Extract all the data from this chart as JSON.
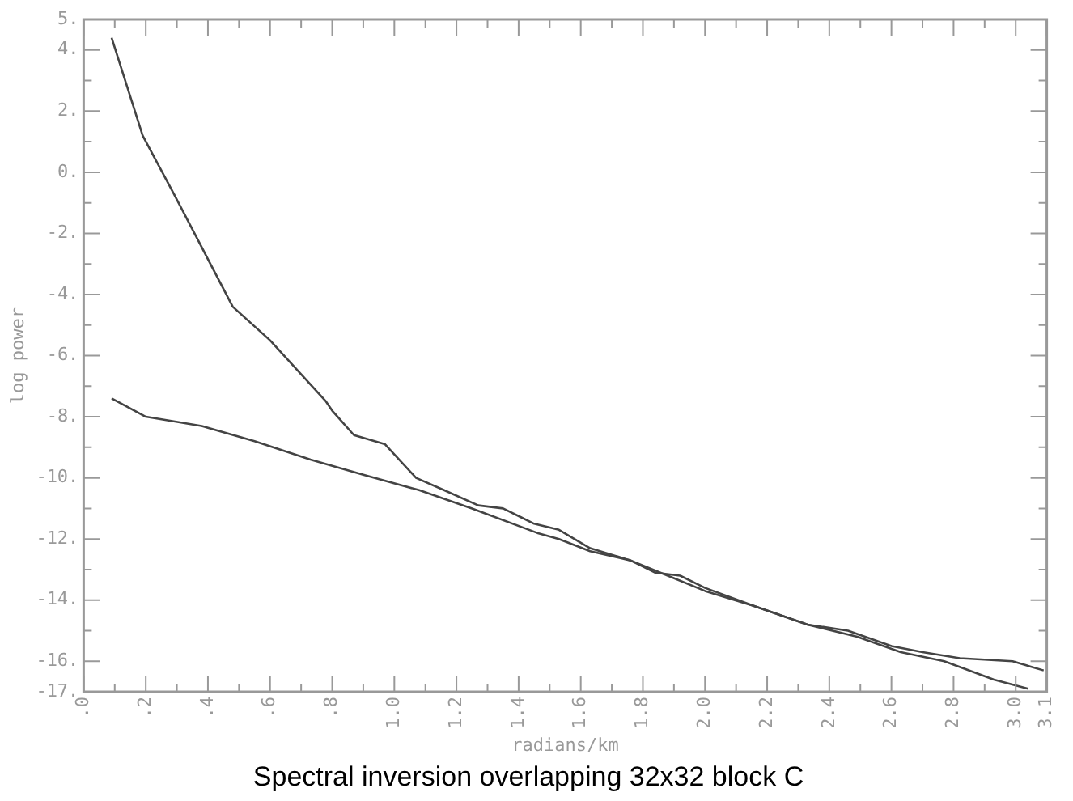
{
  "chart_data": {
    "type": "line",
    "title": "Spectral inversion overlapping 32x32 block C",
    "xlabel": "radians/km",
    "ylabel": "log power",
    "xlim": [
      0,
      3.1
    ],
    "ylim": [
      -17,
      5
    ],
    "xticks": [
      {
        "value": 0,
        "label": ".0"
      },
      {
        "value": 0.1,
        "label": null
      },
      {
        "value": 0.2,
        "label": ".2"
      },
      {
        "value": 0.3,
        "label": null
      },
      {
        "value": 0.4,
        "label": ".4"
      },
      {
        "value": 0.5,
        "label": null
      },
      {
        "value": 0.6,
        "label": ".6"
      },
      {
        "value": 0.7,
        "label": null
      },
      {
        "value": 0.8,
        "label": ".8"
      },
      {
        "value": 0.9,
        "label": null
      },
      {
        "value": 1.0,
        "label": "1.0"
      },
      {
        "value": 1.1,
        "label": null
      },
      {
        "value": 1.2,
        "label": "1.2"
      },
      {
        "value": 1.3,
        "label": null
      },
      {
        "value": 1.4,
        "label": "1.4"
      },
      {
        "value": 1.5,
        "label": null
      },
      {
        "value": 1.6,
        "label": "1.6"
      },
      {
        "value": 1.7,
        "label": null
      },
      {
        "value": 1.8,
        "label": "1.8"
      },
      {
        "value": 1.9,
        "label": null
      },
      {
        "value": 2.0,
        "label": "2.0"
      },
      {
        "value": 2.1,
        "label": null
      },
      {
        "value": 2.2,
        "label": "2.2"
      },
      {
        "value": 2.3,
        "label": null
      },
      {
        "value": 2.4,
        "label": "2.4"
      },
      {
        "value": 2.5,
        "label": null
      },
      {
        "value": 2.6,
        "label": "2.6"
      },
      {
        "value": 2.7,
        "label": null
      },
      {
        "value": 2.8,
        "label": "2.8"
      },
      {
        "value": 2.9,
        "label": null
      },
      {
        "value": 3.0,
        "label": "3.0"
      },
      {
        "value": 3.1,
        "label": "3.1"
      }
    ],
    "yticks": [
      {
        "value": -17,
        "label": "-17."
      },
      {
        "value": -16,
        "label": "-16."
      },
      {
        "value": -15,
        "label": null
      },
      {
        "value": -14,
        "label": "-14."
      },
      {
        "value": -13,
        "label": null
      },
      {
        "value": -12,
        "label": "-12."
      },
      {
        "value": -11,
        "label": null
      },
      {
        "value": -10,
        "label": "-10."
      },
      {
        "value": -9,
        "label": null
      },
      {
        "value": -8,
        "label": "-8."
      },
      {
        "value": -7,
        "label": null
      },
      {
        "value": -6,
        "label": "-6."
      },
      {
        "value": -5,
        "label": null
      },
      {
        "value": -4,
        "label": "-4."
      },
      {
        "value": -3,
        "label": null
      },
      {
        "value": -2,
        "label": "-2."
      },
      {
        "value": -1,
        "label": null
      },
      {
        "value": 0,
        "label": "0."
      },
      {
        "value": 1,
        "label": null
      },
      {
        "value": 2,
        "label": "2."
      },
      {
        "value": 3,
        "label": null
      },
      {
        "value": 4,
        "label": "4."
      },
      {
        "value": 5,
        "label": "5."
      }
    ],
    "grid": false,
    "legend": false,
    "marker": "none",
    "line_style": "solid",
    "series": [
      {
        "color": "#444444",
        "x": [
          0.09,
          0.19,
          0.29,
          0.48,
          0.6,
          0.78,
          0.8,
          0.87,
          0.97,
          1.07,
          1.16,
          1.27,
          1.35,
          1.41,
          1.45,
          1.53,
          1.63,
          1.76,
          1.84,
          1.92,
          2.0,
          2.16,
          2.33,
          2.46,
          2.6,
          2.7,
          2.82,
          2.99,
          3.09
        ],
        "values": [
          4.4,
          1.2,
          -0.7,
          -4.4,
          -5.5,
          -7.5,
          -7.8,
          -8.6,
          -8.9,
          -10.0,
          -10.4,
          -10.9,
          -11.0,
          -11.3,
          -11.5,
          -11.7,
          -12.3,
          -12.7,
          -13.1,
          -13.2,
          -13.6,
          -14.2,
          -14.8,
          -15.0,
          -15.5,
          -15.7,
          -15.9,
          -16.0,
          -16.3
        ]
      },
      {
        "color": "#444444",
        "x": [
          0.09,
          0.2,
          0.38,
          0.55,
          0.73,
          0.9,
          1.08,
          1.25,
          1.46,
          1.53,
          1.63,
          1.76,
          1.88,
          2.0,
          2.16,
          2.33,
          2.49,
          2.63,
          2.77,
          2.93,
          3.04
        ],
        "values": [
          -7.4,
          -8.0,
          -8.3,
          -8.8,
          -9.4,
          -9.9,
          -10.4,
          -11.0,
          -11.8,
          -12.0,
          -12.4,
          -12.7,
          -13.2,
          -13.7,
          -14.2,
          -14.8,
          -15.2,
          -15.7,
          -16.0,
          -16.6,
          -16.9
        ]
      }
    ]
  }
}
